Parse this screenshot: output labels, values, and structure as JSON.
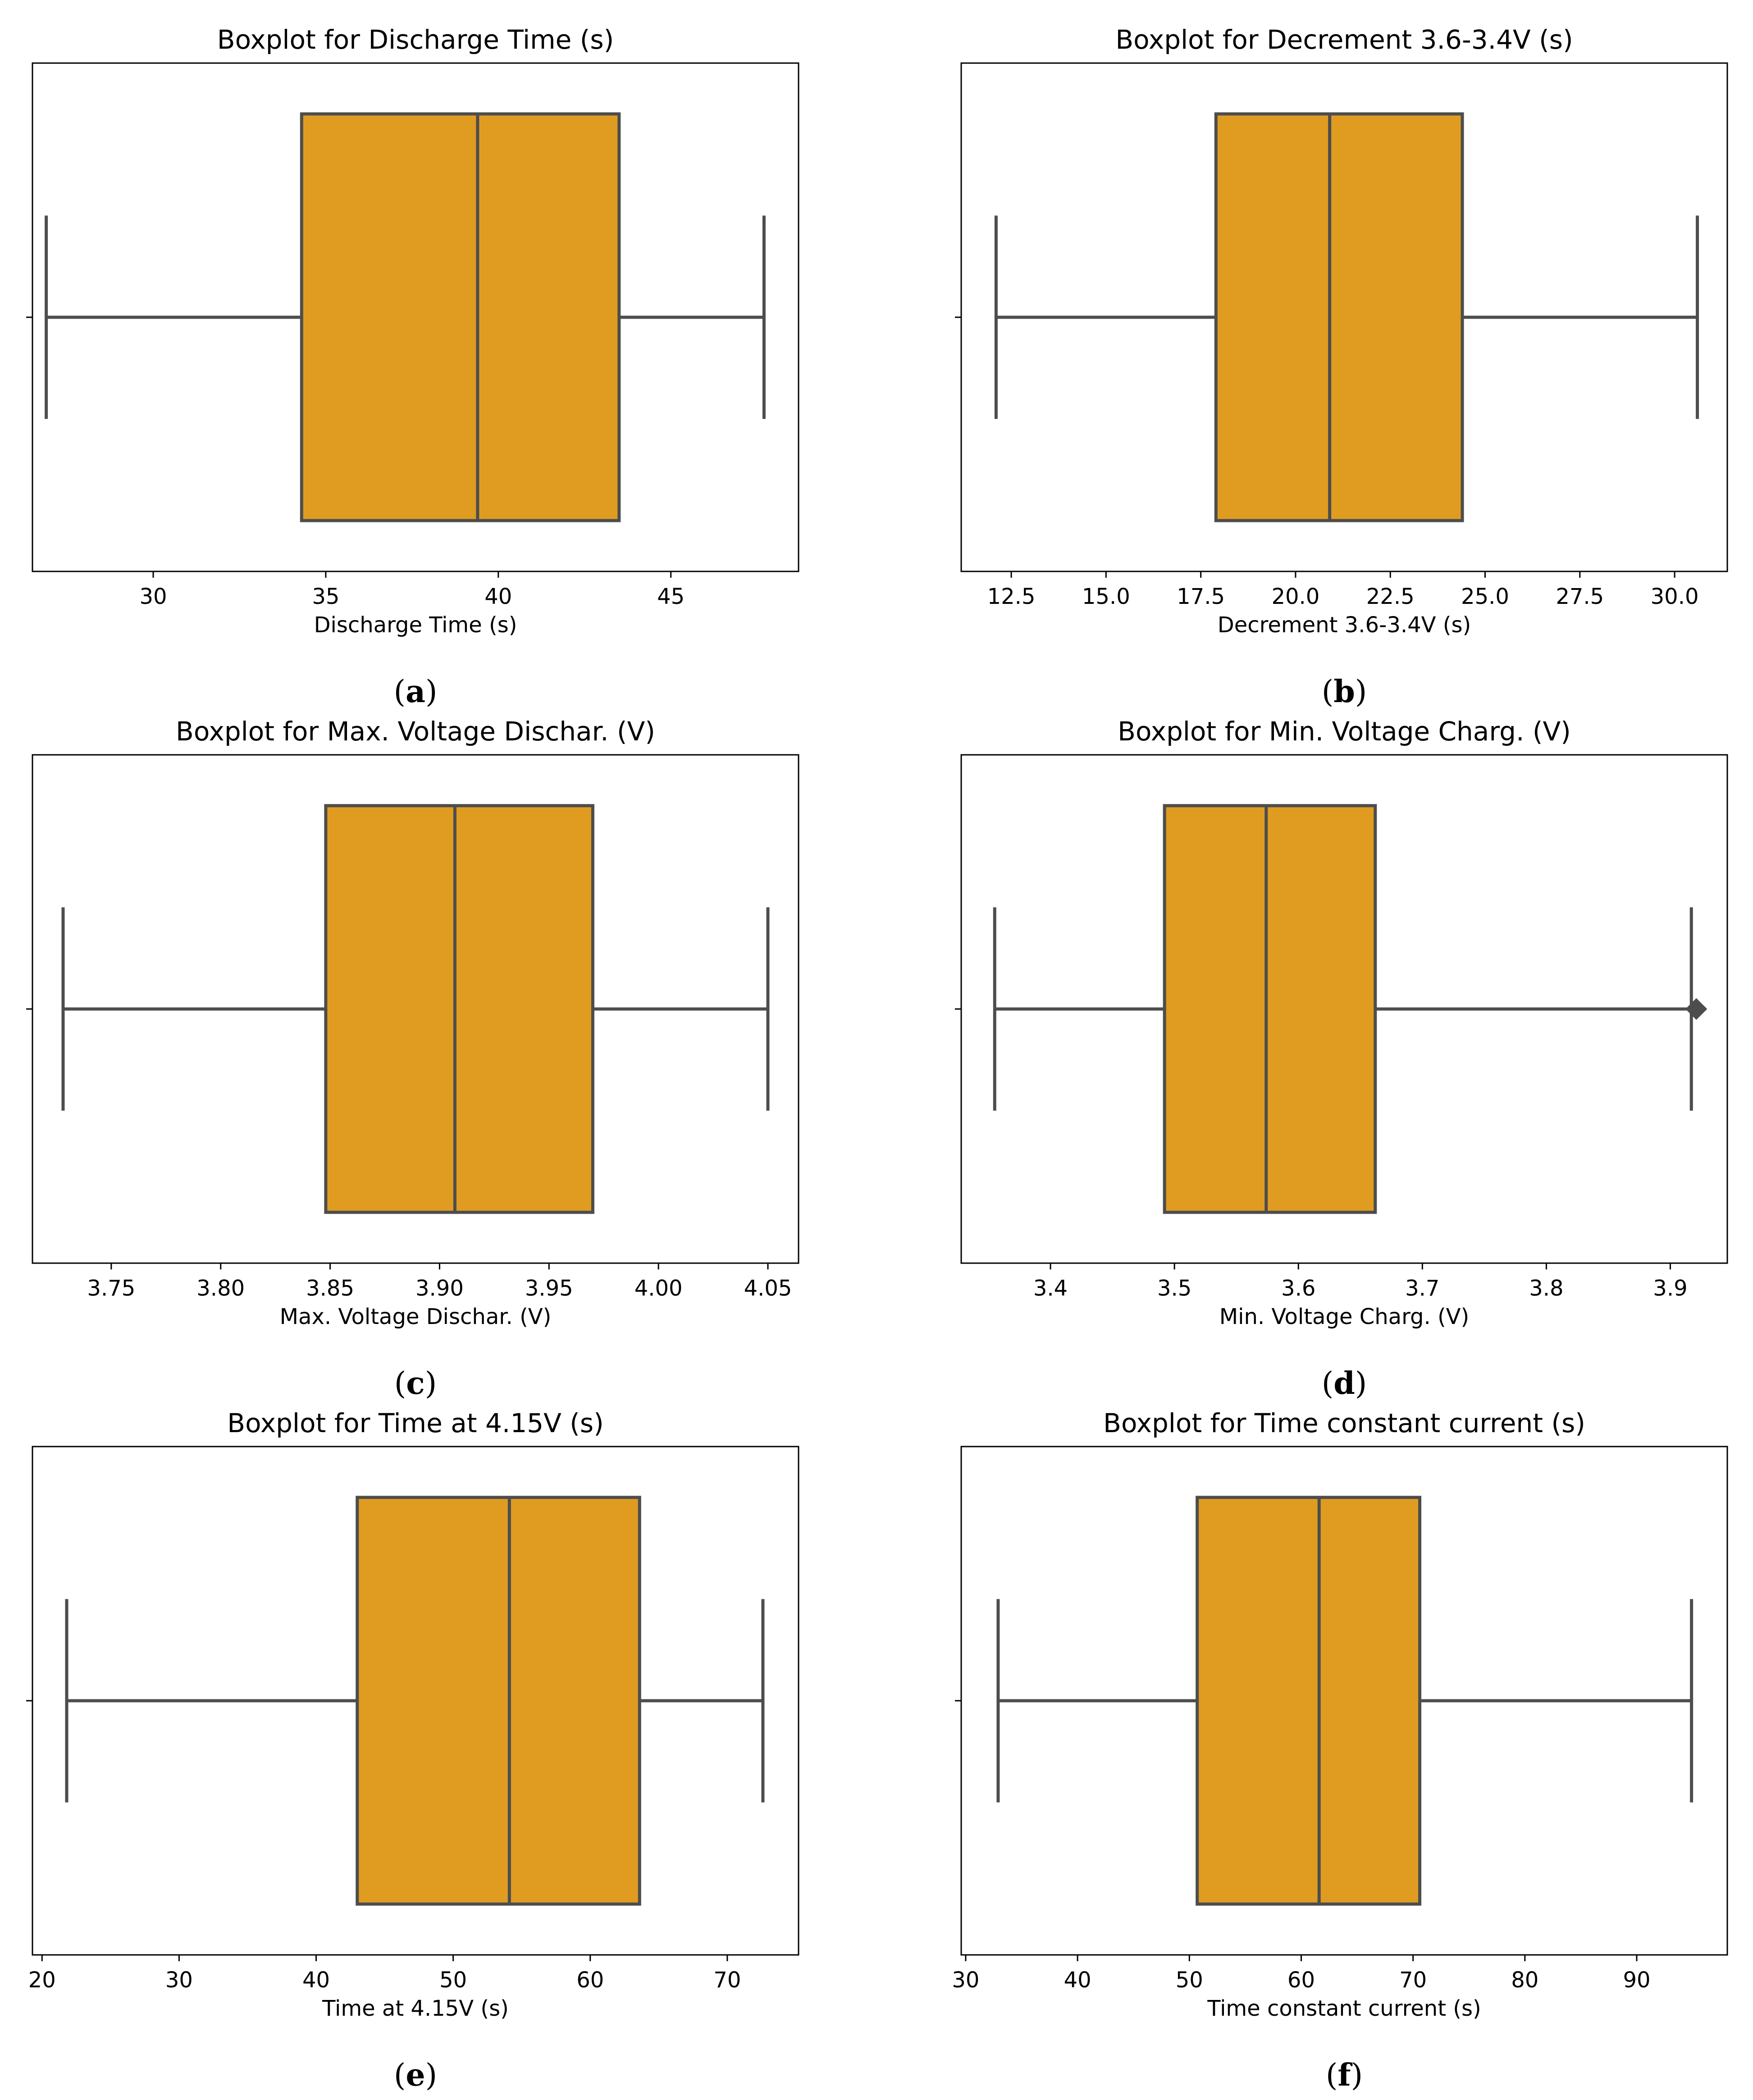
{
  "style": {
    "box_color": "#e09c21",
    "line_color": "#4d4d4d",
    "frame_color": "#000000"
  },
  "chart_data": [
    {
      "type": "box",
      "panel": "a",
      "title": "Boxplot for Discharge Time (s)",
      "xlabel": "Discharge Time (s)",
      "xlim": [
        26.5,
        48.7
      ],
      "ticks": [
        30,
        35,
        40,
        45
      ],
      "tick_labels": [
        "30",
        "35",
        "40",
        "45"
      ],
      "stats": {
        "whisker_low": 26.9,
        "q1": 34.3,
        "median": 39.4,
        "q3": 43.5,
        "whisker_high": 47.7
      },
      "outliers": []
    },
    {
      "type": "box",
      "panel": "b",
      "title": "Boxplot for Decrement 3.6-3.4V (s)",
      "xlabel": "Decrement 3.6-3.4V (s)",
      "xlim": [
        11.18,
        31.39
      ],
      "ticks": [
        12.5,
        15.0,
        17.5,
        20.0,
        22.5,
        25.0,
        27.5,
        30.0
      ],
      "tick_labels": [
        "12.5",
        "15.0",
        "17.5",
        "20.0",
        "22.5",
        "25.0",
        "27.5",
        "30.0"
      ],
      "stats": {
        "whisker_low": 12.1,
        "q1": 17.9,
        "median": 20.9,
        "q3": 24.4,
        "whisker_high": 30.6
      },
      "outliers": []
    },
    {
      "type": "box",
      "panel": "c",
      "title": "Boxplot for Max. Voltage Dischar. (V)",
      "xlabel": "Max. Voltage Dischar. (V)",
      "xlim": [
        3.714,
        4.064
      ],
      "ticks": [
        3.75,
        3.8,
        3.85,
        3.9,
        3.95,
        4.0,
        4.05
      ],
      "tick_labels": [
        "3.75",
        "3.80",
        "3.85",
        "3.90",
        "3.95",
        "4.00",
        "4.05"
      ],
      "stats": {
        "whisker_low": 3.728,
        "q1": 3.848,
        "median": 3.907,
        "q3": 3.97,
        "whisker_high": 4.05
      },
      "outliers": []
    },
    {
      "type": "box",
      "panel": "d",
      "title": "Boxplot for Min. Voltage Charg. (V)",
      "xlabel": "Min. Voltage Charg. (V)",
      "xlim": [
        3.328,
        3.946
      ],
      "ticks": [
        3.4,
        3.5,
        3.6,
        3.7,
        3.8,
        3.9
      ],
      "tick_labels": [
        "3.4",
        "3.5",
        "3.6",
        "3.7",
        "3.8",
        "3.9"
      ],
      "stats": {
        "whisker_low": 3.355,
        "q1": 3.492,
        "median": 3.574,
        "q3": 3.662,
        "whisker_high": 3.917
      },
      "outliers": [
        3.921
      ]
    },
    {
      "type": "box",
      "panel": "e",
      "title": "Boxplot for Time at 4.15V (s)",
      "xlabel": "Time at 4.15V (s)",
      "xlim": [
        19.3,
        75.2
      ],
      "ticks": [
        20,
        30,
        40,
        50,
        60,
        70
      ],
      "tick_labels": [
        "20",
        "30",
        "40",
        "50",
        "60",
        "70"
      ],
      "stats": {
        "whisker_low": 21.8,
        "q1": 43.0,
        "median": 54.1,
        "q3": 63.6,
        "whisker_high": 72.6
      },
      "outliers": []
    },
    {
      "type": "box",
      "panel": "f",
      "title": "Boxplot for Time constant current (s)",
      "xlabel": "Time constant current (s)",
      "xlim": [
        29.6,
        98.1
      ],
      "ticks": [
        30,
        40,
        50,
        60,
        70,
        80,
        90
      ],
      "tick_labels": [
        "30",
        "40",
        "50",
        "60",
        "70",
        "80",
        "90"
      ],
      "stats": {
        "whisker_low": 32.9,
        "q1": 50.7,
        "median": 61.6,
        "q3": 70.6,
        "whisker_high": 94.9
      },
      "outliers": []
    }
  ],
  "captions": [
    {
      "open": "(",
      "letter": "a",
      "close": ")"
    },
    {
      "open": "(",
      "letter": "b",
      "close": ")"
    },
    {
      "open": "(",
      "letter": "c",
      "close": ")"
    },
    {
      "open": "(",
      "letter": "d",
      "close": ")"
    },
    {
      "open": "(",
      "letter": "e",
      "close": ")"
    },
    {
      "open": "(",
      "letter": "f",
      "close": ")"
    }
  ]
}
